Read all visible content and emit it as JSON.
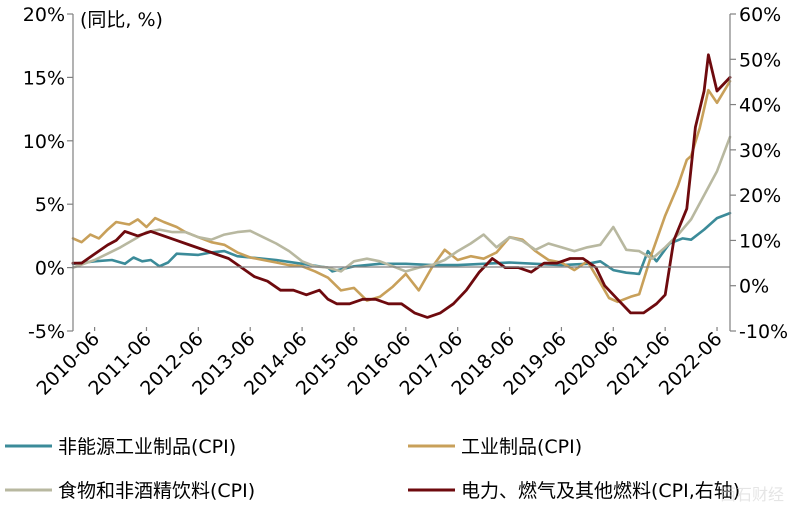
{
  "chart_data": {
    "type": "line",
    "unit_label": "(同比, %)",
    "x_start": "2010-01",
    "x_end": "2022-09",
    "x_tick_labels": [
      "2010-06",
      "2011-06",
      "2012-06",
      "2013-06",
      "2014-06",
      "2015-06",
      "2016-06",
      "2017-06",
      "2018-06",
      "2019-06",
      "2020-06",
      "2021-06",
      "2022-06"
    ],
    "y_left": {
      "min": -5,
      "max": 20,
      "ticks": [
        -5,
        0,
        5,
        10,
        15,
        20
      ],
      "tick_labels": [
        "-5%",
        "0%",
        "5%",
        "10%",
        "15%",
        "20%"
      ]
    },
    "y_right": {
      "min": -10,
      "max": 60,
      "ticks": [
        -10,
        0,
        10,
        20,
        30,
        40,
        50,
        60
      ],
      "tick_labels": [
        "-10%",
        "0%",
        "10%",
        "20%",
        "30%",
        "40%",
        "50%",
        "60%"
      ]
    },
    "series": [
      {
        "name": "非能源工业制品(CPI)",
        "axis": "left",
        "color": "#3b8b99",
        "width": 2.6,
        "points": [
          [
            "2010-01",
            0.3
          ],
          [
            "2010-06",
            0.5
          ],
          [
            "2010-10",
            0.6
          ],
          [
            "2011-01",
            0.3
          ],
          [
            "2011-03",
            0.8
          ],
          [
            "2011-05",
            0.5
          ],
          [
            "2011-07",
            0.6
          ],
          [
            "2011-09",
            0.1
          ],
          [
            "2011-11",
            0.4
          ],
          [
            "2012-01",
            1.1
          ],
          [
            "2012-06",
            1.0
          ],
          [
            "2012-09",
            1.2
          ],
          [
            "2012-12",
            1.3
          ],
          [
            "2013-03",
            0.9
          ],
          [
            "2013-06",
            0.8
          ],
          [
            "2013-12",
            0.6
          ],
          [
            "2014-06",
            0.3
          ],
          [
            "2014-12",
            0.0
          ],
          [
            "2015-01",
            -0.3
          ],
          [
            "2015-06",
            0.1
          ],
          [
            "2015-12",
            0.3
          ],
          [
            "2016-06",
            0.3
          ],
          [
            "2016-12",
            0.2
          ],
          [
            "2017-06",
            0.2
          ],
          [
            "2017-12",
            0.3
          ],
          [
            "2018-06",
            0.4
          ],
          [
            "2018-12",
            0.3
          ],
          [
            "2019-06",
            0.2
          ],
          [
            "2019-12",
            0.3
          ],
          [
            "2020-03",
            0.5
          ],
          [
            "2020-06",
            -0.2
          ],
          [
            "2020-09",
            -0.4
          ],
          [
            "2020-12",
            -0.5
          ],
          [
            "2021-02",
            1.3
          ],
          [
            "2021-04",
            0.5
          ],
          [
            "2021-07",
            1.9
          ],
          [
            "2021-10",
            2.3
          ],
          [
            "2021-12",
            2.2
          ],
          [
            "2022-03",
            3.0
          ],
          [
            "2022-06",
            3.9
          ],
          [
            "2022-09",
            4.3
          ]
        ]
      },
      {
        "name": "工业制品(CPI)",
        "axis": "left",
        "color": "#c8a05a",
        "width": 2.6,
        "points": [
          [
            "2010-01",
            2.3
          ],
          [
            "2010-03",
            2.0
          ],
          [
            "2010-05",
            2.6
          ],
          [
            "2010-07",
            2.3
          ],
          [
            "2010-09",
            3.0
          ],
          [
            "2010-11",
            3.6
          ],
          [
            "2011-02",
            3.4
          ],
          [
            "2011-04",
            3.8
          ],
          [
            "2011-06",
            3.2
          ],
          [
            "2011-08",
            3.9
          ],
          [
            "2011-10",
            3.6
          ],
          [
            "2012-01",
            3.2
          ],
          [
            "2012-03",
            2.8
          ],
          [
            "2012-06",
            2.4
          ],
          [
            "2012-09",
            2.0
          ],
          [
            "2012-12",
            1.8
          ],
          [
            "2013-03",
            1.2
          ],
          [
            "2013-06",
            0.8
          ],
          [
            "2013-09",
            0.6
          ],
          [
            "2013-12",
            0.4
          ],
          [
            "2014-03",
            0.2
          ],
          [
            "2014-06",
            0.1
          ],
          [
            "2014-09",
            -0.3
          ],
          [
            "2014-12",
            -0.8
          ],
          [
            "2015-03",
            -1.8
          ],
          [
            "2015-06",
            -1.6
          ],
          [
            "2015-09",
            -2.6
          ],
          [
            "2015-12",
            -2.3
          ],
          [
            "2016-03",
            -1.5
          ],
          [
            "2016-06",
            -0.5
          ],
          [
            "2016-09",
            -1.8
          ],
          [
            "2016-12",
            0.0
          ],
          [
            "2017-03",
            1.4
          ],
          [
            "2017-06",
            0.6
          ],
          [
            "2017-09",
            0.9
          ],
          [
            "2017-12",
            0.7
          ],
          [
            "2018-03",
            1.2
          ],
          [
            "2018-06",
            2.4
          ],
          [
            "2018-09",
            2.2
          ],
          [
            "2018-12",
            1.3
          ],
          [
            "2019-03",
            0.6
          ],
          [
            "2019-06",
            0.4
          ],
          [
            "2019-09",
            -0.2
          ],
          [
            "2019-12",
            0.5
          ],
          [
            "2020-03",
            -1.2
          ],
          [
            "2020-05",
            -2.4
          ],
          [
            "2020-07",
            -2.7
          ],
          [
            "2020-10",
            -2.3
          ],
          [
            "2020-12",
            -2.1
          ],
          [
            "2021-03",
            1.2
          ],
          [
            "2021-06",
            4.1
          ],
          [
            "2021-09",
            6.5
          ],
          [
            "2021-11",
            8.5
          ],
          [
            "2021-12",
            8.8
          ],
          [
            "2022-02",
            11.0
          ],
          [
            "2022-04",
            14.0
          ],
          [
            "2022-06",
            13.0
          ],
          [
            "2022-09",
            14.7
          ]
        ]
      },
      {
        "name": "食物和非酒精饮料(CPI)",
        "axis": "left",
        "color": "#b8b8a0",
        "width": 2.6,
        "points": [
          [
            "2010-01",
            0.0
          ],
          [
            "2010-06",
            0.6
          ],
          [
            "2010-09",
            1.1
          ],
          [
            "2010-12",
            1.6
          ],
          [
            "2011-03",
            2.2
          ],
          [
            "2011-06",
            2.8
          ],
          [
            "2011-09",
            3.0
          ],
          [
            "2011-12",
            2.8
          ],
          [
            "2012-03",
            2.8
          ],
          [
            "2012-06",
            2.4
          ],
          [
            "2012-09",
            2.2
          ],
          [
            "2012-12",
            2.6
          ],
          [
            "2013-03",
            2.8
          ],
          [
            "2013-06",
            2.9
          ],
          [
            "2013-09",
            2.4
          ],
          [
            "2013-12",
            1.9
          ],
          [
            "2014-03",
            1.3
          ],
          [
            "2014-06",
            0.5
          ],
          [
            "2014-09",
            0.1
          ],
          [
            "2014-12",
            0.0
          ],
          [
            "2015-03",
            -0.3
          ],
          [
            "2015-06",
            0.5
          ],
          [
            "2015-09",
            0.7
          ],
          [
            "2015-12",
            0.5
          ],
          [
            "2016-03",
            0.1
          ],
          [
            "2016-06",
            -0.3
          ],
          [
            "2016-09",
            0.0
          ],
          [
            "2016-12",
            0.2
          ],
          [
            "2017-03",
            0.6
          ],
          [
            "2017-06",
            1.3
          ],
          [
            "2017-09",
            1.9
          ],
          [
            "2017-12",
            2.6
          ],
          [
            "2018-03",
            1.6
          ],
          [
            "2018-06",
            2.4
          ],
          [
            "2018-09",
            2.1
          ],
          [
            "2018-12",
            1.4
          ],
          [
            "2019-03",
            1.9
          ],
          [
            "2019-06",
            1.6
          ],
          [
            "2019-09",
            1.3
          ],
          [
            "2019-12",
            1.6
          ],
          [
            "2020-03",
            1.8
          ],
          [
            "2020-06",
            3.2
          ],
          [
            "2020-09",
            1.4
          ],
          [
            "2020-12",
            1.3
          ],
          [
            "2021-03",
            0.7
          ],
          [
            "2021-06",
            1.6
          ],
          [
            "2021-09",
            2.6
          ],
          [
            "2021-12",
            3.8
          ],
          [
            "2022-03",
            5.7
          ],
          [
            "2022-06",
            7.6
          ],
          [
            "2022-09",
            10.3
          ]
        ]
      },
      {
        "name": "电力、燃气及其他燃料(CPI,右轴)",
        "axis": "right",
        "color": "#6e0a0e",
        "width": 2.8,
        "points": [
          [
            "2010-01",
            5
          ],
          [
            "2010-03",
            5
          ],
          [
            "2010-06",
            7
          ],
          [
            "2010-09",
            9
          ],
          [
            "2010-11",
            10
          ],
          [
            "2011-01",
            12
          ],
          [
            "2011-04",
            11
          ],
          [
            "2011-07",
            12
          ],
          [
            "2011-10",
            11
          ],
          [
            "2012-01",
            10
          ],
          [
            "2012-04",
            9
          ],
          [
            "2012-07",
            8
          ],
          [
            "2012-10",
            7
          ],
          [
            "2013-01",
            6
          ],
          [
            "2013-04",
            4
          ],
          [
            "2013-07",
            2
          ],
          [
            "2013-10",
            1
          ],
          [
            "2014-01",
            -1
          ],
          [
            "2014-04",
            -1
          ],
          [
            "2014-07",
            -2
          ],
          [
            "2014-10",
            -1
          ],
          [
            "2014-12",
            -3
          ],
          [
            "2015-02",
            -4
          ],
          [
            "2015-05",
            -4
          ],
          [
            "2015-08",
            -3
          ],
          [
            "2015-11",
            -3
          ],
          [
            "2016-02",
            -4
          ],
          [
            "2016-05",
            -4
          ],
          [
            "2016-08",
            -6
          ],
          [
            "2016-11",
            -7
          ],
          [
            "2017-02",
            -6
          ],
          [
            "2017-05",
            -4
          ],
          [
            "2017-08",
            -1
          ],
          [
            "2017-11",
            3
          ],
          [
            "2018-02",
            6
          ],
          [
            "2018-05",
            4
          ],
          [
            "2018-08",
            4
          ],
          [
            "2018-11",
            3
          ],
          [
            "2019-02",
            5
          ],
          [
            "2019-05",
            5
          ],
          [
            "2019-08",
            6
          ],
          [
            "2019-11",
            6
          ],
          [
            "2020-02",
            4
          ],
          [
            "2020-04",
            0
          ],
          [
            "2020-07",
            -3
          ],
          [
            "2020-10",
            -6
          ],
          [
            "2021-01",
            -6
          ],
          [
            "2021-04",
            -4
          ],
          [
            "2021-06",
            -2
          ],
          [
            "2021-08",
            10
          ],
          [
            "2021-11",
            17
          ],
          [
            "2022-01",
            35
          ],
          [
            "2022-03",
            43
          ],
          [
            "2022-04",
            51
          ],
          [
            "2022-06",
            43
          ],
          [
            "2022-09",
            46
          ]
        ]
      }
    ],
    "legend": [
      {
        "label": "非能源工业制品(CPI)",
        "series": 0
      },
      {
        "label": "工业制品(CPI)",
        "series": 1
      },
      {
        "label": "食物和非酒精饮料(CPI)",
        "series": 2
      },
      {
        "label": "电力、燃气及其他燃料(CPI,右轴)",
        "series": 3
      }
    ],
    "grid": false,
    "legend_placement": "bottom"
  },
  "watermark": "西石财经"
}
